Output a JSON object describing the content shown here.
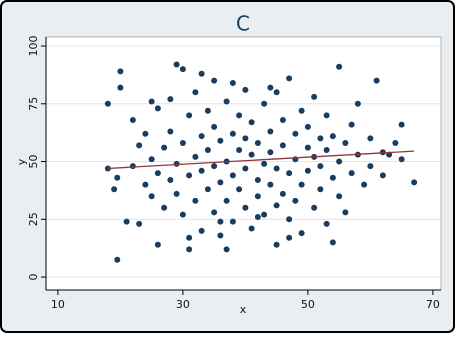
{
  "chart_data": {
    "type": "scatter",
    "title": "C",
    "x_label": "x",
    "y_label": "y",
    "xlim": [
      8.1,
      71.3
    ],
    "ylim": [
      -5.6,
      103.9
    ],
    "xticks": [
      10,
      30,
      50,
      70
    ],
    "yticks": [
      0,
      25,
      50,
      75,
      100
    ],
    "grid": true,
    "series": [
      {
        "type": "scatter",
        "color": "#1a3d5f",
        "x": [
          18,
          19,
          19.5,
          20,
          20,
          19.5,
          18,
          21,
          22,
          22,
          23,
          23,
          24,
          24,
          25,
          25,
          26,
          26,
          26,
          27,
          27,
          28,
          28,
          29,
          29,
          29,
          30,
          30,
          30,
          31,
          31,
          31,
          32,
          32,
          32,
          33,
          33,
          33,
          34,
          34,
          34,
          35,
          35,
          35,
          35,
          36,
          36,
          36,
          37,
          37,
          37,
          37,
          38,
          38,
          38,
          39,
          39,
          39,
          40,
          40,
          40,
          40,
          41,
          41,
          41,
          42,
          42,
          42,
          43,
          43,
          43,
          44,
          44,
          44,
          45,
          45,
          45,
          45,
          46,
          46,
          46,
          47,
          47,
          47,
          48,
          48,
          48,
          49,
          49,
          49,
          50,
          50,
          50,
          51,
          51,
          51,
          52,
          52,
          52,
          53,
          53,
          53,
          54,
          54,
          55,
          55,
          55,
          56,
          56,
          57,
          57,
          58,
          58,
          59,
          60,
          60,
          61,
          62,
          62,
          63,
          64,
          65,
          65,
          67,
          33,
          38,
          44,
          28,
          25,
          54,
          47,
          31,
          42,
          36
        ],
        "values": [
          47,
          38,
          43,
          89,
          82,
          7.5,
          75,
          24,
          68,
          48,
          23,
          57,
          40,
          62,
          35,
          51,
          14,
          73,
          45,
          30,
          56,
          63,
          42,
          92,
          36,
          49,
          90,
          27,
          58,
          12,
          44,
          70,
          33,
          52,
          80,
          20,
          61,
          46,
          38,
          72,
          55,
          28,
          48,
          65,
          85,
          18,
          41,
          59,
          12,
          50,
          76,
          33,
          44,
          62,
          24,
          55,
          70,
          38,
          47,
          81,
          30,
          60,
          21,
          53,
          67,
          42,
          58,
          35,
          75,
          49,
          27,
          63,
          40,
          54,
          80,
          31,
          47,
          14,
          68,
          57,
          36,
          86,
          45,
          25,
          62,
          51,
          33,
          72,
          40,
          19,
          56,
          46,
          65,
          30,
          52,
          78,
          60,
          38,
          48,
          23,
          70,
          55,
          43,
          61,
          91,
          35,
          50,
          58,
          28,
          66,
          45,
          53,
          75,
          40,
          60,
          48,
          85,
          54,
          44,
          53,
          58,
          66,
          51,
          41,
          88,
          84,
          82,
          77,
          76,
          15,
          17,
          17,
          26,
          24
        ]
      },
      {
        "type": "line",
        "color": "#90353b",
        "x": [
          18,
          67
        ],
        "values": [
          47,
          54.5
        ]
      }
    ]
  }
}
